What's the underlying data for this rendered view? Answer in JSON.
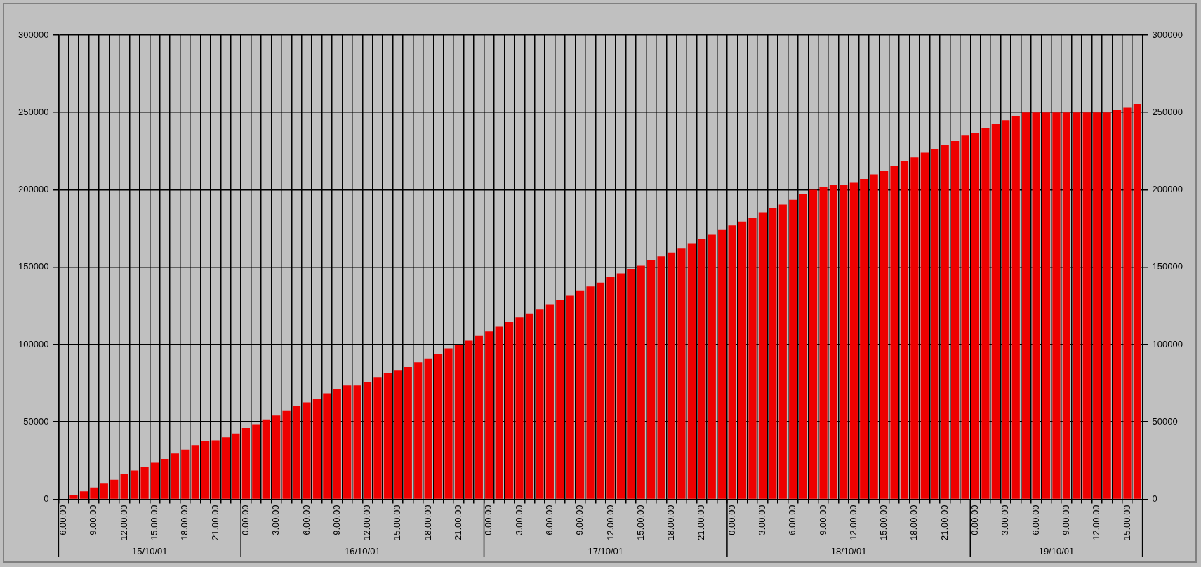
{
  "chart_data": {
    "type": "bar",
    "categories": [
      "6.00.00",
      null,
      null,
      "9.00.00",
      null,
      null,
      "12.00.00",
      null,
      null,
      "15.00.00",
      null,
      null,
      "18.00.00",
      null,
      null,
      "21.00.00",
      null,
      null,
      "0.00.00",
      null,
      null,
      "3.00.00",
      null,
      null,
      "6.00.00",
      null,
      null,
      "9.00.00",
      null,
      null,
      "12.00.00",
      null,
      null,
      "15.00.00",
      null,
      null,
      "18.00.00",
      null,
      null,
      "21.00.00",
      null,
      null,
      "0.00.00",
      null,
      null,
      "3.00.00",
      null,
      null,
      "6.00.00",
      null,
      null,
      "9.00.00",
      null,
      null,
      "12.00.00",
      null,
      null,
      "15.00.00",
      null,
      null,
      "18.00.00",
      null,
      null,
      "21.00.00",
      null,
      null,
      "0.00.00",
      null,
      null,
      "3.00.00",
      null,
      null,
      "6.00.00",
      null,
      null,
      "9.00.00",
      null,
      null,
      "12.00.00",
      null,
      null,
      "15.00.00",
      null,
      null,
      "18.00.00",
      null,
      null,
      "21.00.00",
      null,
      null,
      "0.00.00",
      null,
      null,
      "3.00.00",
      null,
      null,
      "6.00.00",
      null,
      null,
      "9.00.00",
      null,
      null,
      "12.00.00",
      null,
      null,
      "15.00.00",
      null
    ],
    "values": [
      0,
      2500,
      5000,
      7500,
      10000,
      12500,
      16000,
      18500,
      21000,
      23500,
      26000,
      29500,
      32000,
      35000,
      37500,
      38000,
      40000,
      42500,
      46000,
      48500,
      51500,
      54000,
      57500,
      60000,
      62500,
      65000,
      68500,
      71000,
      73500,
      73500,
      75500,
      79000,
      81500,
      83500,
      85500,
      88500,
      91000,
      94000,
      97500,
      100000,
      102500,
      105500,
      108500,
      111500,
      114500,
      117500,
      120000,
      122500,
      126000,
      129000,
      131500,
      135000,
      137500,
      140000,
      143500,
      146000,
      148500,
      151000,
      154500,
      157000,
      159500,
      162000,
      165500,
      168500,
      171000,
      174000,
      177000,
      179500,
      182000,
      185500,
      188000,
      190500,
      193500,
      197000,
      200000,
      202000,
      203000,
      203000,
      204500,
      207000,
      210000,
      212500,
      215500,
      218500,
      221000,
      224000,
      226500,
      229000,
      231500,
      235000,
      237000,
      240000,
      242500,
      245000,
      247500,
      250000,
      250000,
      250000,
      250000,
      250000,
      250000,
      250000,
      250000,
      250000,
      251500,
      253000,
      255500
    ],
    "color": "#ee0000",
    "ylim": [
      0,
      300000
    ],
    "yticks": [
      0,
      50000,
      100000,
      150000,
      200000,
      250000,
      300000
    ],
    "y2lim": [
      0,
      300000
    ],
    "y2ticks": [
      0,
      50000,
      100000,
      150000,
      200000,
      250000,
      300000
    ],
    "grid": true,
    "annotations": [
      "15/10/01",
      "16/10/01",
      "17/10/01",
      "18/10/01",
      "19/10/01"
    ]
  }
}
